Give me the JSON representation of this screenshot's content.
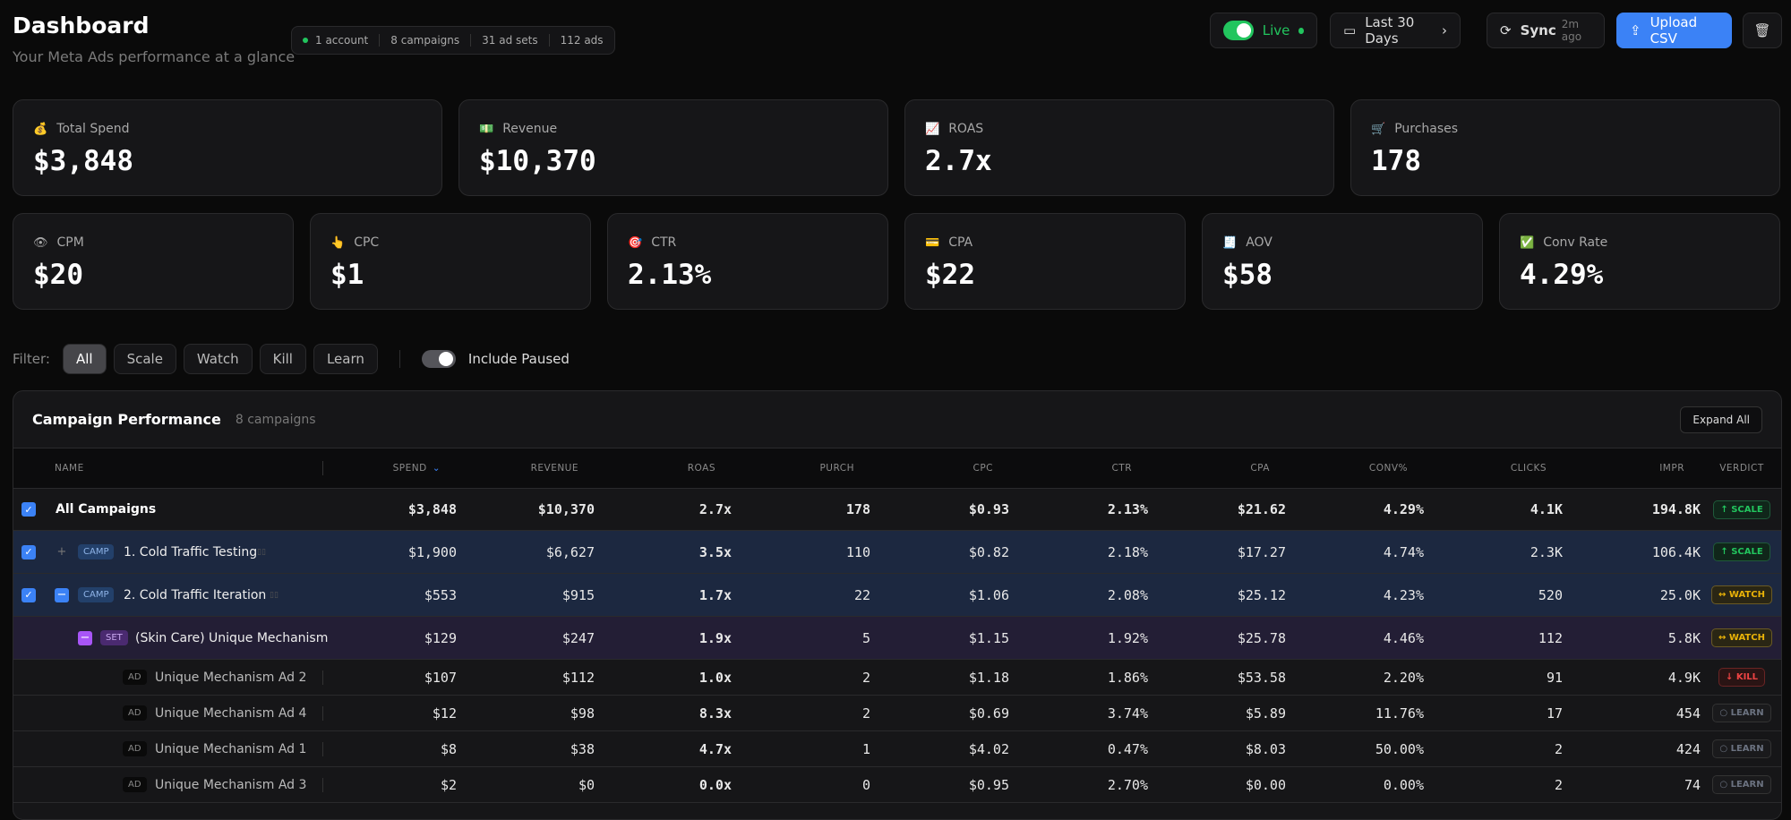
{
  "header": {
    "title": "Dashboard",
    "subtitle": "Your Meta Ads performance at a glance",
    "summary": [
      "1 account",
      "8 campaigns",
      "31 ad sets",
      "112 ads"
    ]
  },
  "toolbar": {
    "live_label": "Live",
    "date_range": "Last 30 Days",
    "sync_label": "Sync",
    "sync_time": "2m ago",
    "upload_label": "Upload CSV"
  },
  "stats_top": [
    {
      "icon": "💰",
      "label": "Total Spend",
      "value": "$3,848"
    },
    {
      "icon": "💵",
      "label": "Revenue",
      "value": "$10,370"
    },
    {
      "icon": "📈",
      "label": "ROAS",
      "value": "2.7x"
    },
    {
      "icon": "🛒",
      "label": "Purchases",
      "value": "178"
    }
  ],
  "stats_bottom": [
    {
      "icon": "👁",
      "label": "CPM",
      "value": "$20"
    },
    {
      "icon": "👆",
      "label": "CPC",
      "value": "$1"
    },
    {
      "icon": "🎯",
      "label": "CTR",
      "value": "2.13%"
    },
    {
      "icon": "💳",
      "label": "CPA",
      "value": "$22"
    },
    {
      "icon": "🧾",
      "label": "AOV",
      "value": "$58"
    },
    {
      "icon": "✅",
      "label": "Conv Rate",
      "value": "4.29%"
    }
  ],
  "filter": {
    "label": "Filter:",
    "options": [
      "All",
      "Scale",
      "Watch",
      "Kill",
      "Learn"
    ],
    "active": "All",
    "include_paused_label": "Include Paused"
  },
  "table": {
    "title": "Campaign Performance",
    "count": "8 campaigns",
    "expand_all": "Expand All",
    "columns": [
      "NAME",
      "SPEND",
      "REVENUE",
      "ROAS",
      "PURCH",
      "CPC",
      "CTR",
      "CPA",
      "CONV%",
      "CLICKS",
      "IMPR",
      "VERDICT"
    ],
    "sort_column": "SPEND",
    "rows": [
      {
        "type": "all",
        "name": "All Campaigns",
        "checked": true,
        "values": [
          "$3,848",
          "$10,370",
          "2.7x",
          "178",
          "$0.93",
          "2.13%",
          "$21.62",
          "4.29%",
          "4.1K",
          "194.8K"
        ],
        "verdict": "↑ SCALE"
      },
      {
        "type": "camp",
        "badge": "CAMP",
        "expander": "+",
        "name": "1. Cold Traffic Testing",
        "checked": true,
        "values": [
          "$1,900",
          "$6,627",
          "3.5x",
          "110",
          "$0.82",
          "2.18%",
          "$17.27",
          "4.74%",
          "2.3K",
          "106.4K"
        ],
        "verdict": "↑ SCALE"
      },
      {
        "type": "camp",
        "badge": "CAMP",
        "expander": "−",
        "name": "2. Cold Traffic Iteration",
        "checked": true,
        "values": [
          "$553",
          "$915",
          "1.7x",
          "22",
          "$1.06",
          "2.08%",
          "$25.12",
          "4.23%",
          "520",
          "25.0K"
        ],
        "verdict": "↔ WATCH"
      },
      {
        "type": "set",
        "badge": "SET",
        "expander": "−",
        "name": "(Skin Care) Unique Mechanism",
        "values": [
          "$129",
          "$247",
          "1.9x",
          "5",
          "$1.15",
          "1.92%",
          "$25.78",
          "4.46%",
          "112",
          "5.8K"
        ],
        "verdict": "↔ WATCH"
      },
      {
        "type": "ad",
        "badge": "AD",
        "name": "Unique Mechanism Ad 2",
        "values": [
          "$107",
          "$112",
          "1.0x",
          "2",
          "$1.18",
          "1.86%",
          "$53.58",
          "2.20%",
          "91",
          "4.9K"
        ],
        "verdict": "↓ KILL"
      },
      {
        "type": "ad",
        "badge": "AD",
        "name": "Unique Mechanism Ad 4",
        "values": [
          "$12",
          "$98",
          "8.3x",
          "2",
          "$0.69",
          "3.74%",
          "$5.89",
          "11.76%",
          "17",
          "454"
        ],
        "verdict": "○ LEARN"
      },
      {
        "type": "ad",
        "badge": "AD",
        "name": "Unique Mechanism Ad 1",
        "values": [
          "$8",
          "$38",
          "4.7x",
          "1",
          "$4.02",
          "0.47%",
          "$8.03",
          "50.00%",
          "2",
          "424"
        ],
        "verdict": "○ LEARN"
      },
      {
        "type": "ad",
        "badge": "AD",
        "name": "Unique Mechanism Ad 3",
        "values": [
          "$2",
          "$0",
          "0.0x",
          "0",
          "$0.95",
          "2.70%",
          "$0.00",
          "0.00%",
          "2",
          "74"
        ],
        "verdict": "○ LEARN"
      }
    ]
  },
  "colors": {
    "accent": "#3b82f6",
    "live": "#22c55e",
    "scale": "#22c55e",
    "watch": "#eab308",
    "kill": "#ef4444",
    "learn": "#6b7280",
    "camp_row": "#1c2840",
    "set_row": "#231e35"
  }
}
